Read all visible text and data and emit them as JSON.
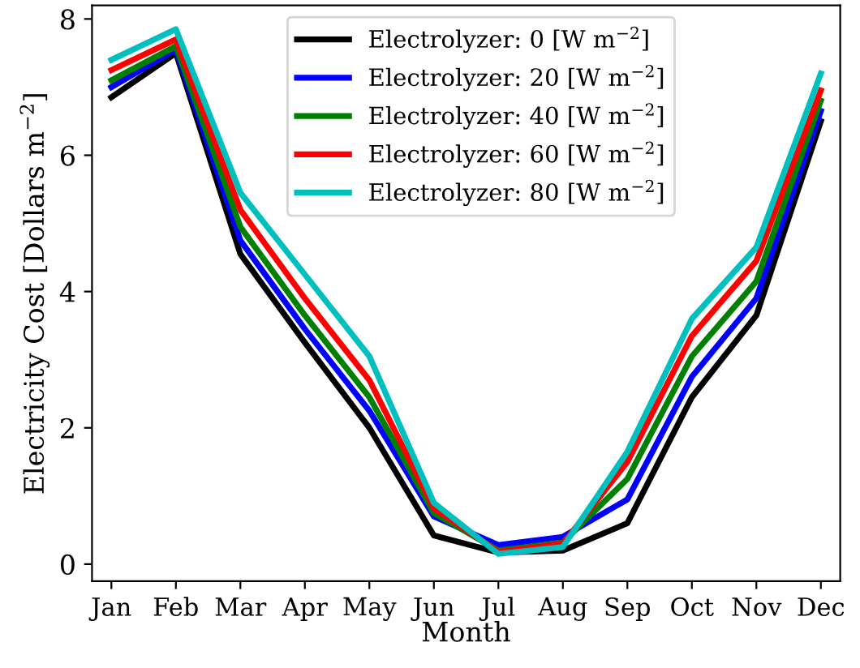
{
  "chart_data": {
    "type": "line",
    "xlabel": "Month",
    "ylabel": "Electricity Cost [Dollars m$^{−2}$]",
    "categories": [
      "Jan",
      "Feb",
      "Mar",
      "Apr",
      "May",
      "Jun",
      "Jul",
      "Aug",
      "Sep",
      "Oct",
      "Nov",
      "Dec"
    ],
    "ylim": [
      -0.25,
      8.2
    ],
    "yticks": [
      0,
      2,
      4,
      6,
      8
    ],
    "legend": "top",
    "grid": false,
    "marker": "none",
    "line_style": "solid",
    "series": [
      {
        "name": "Electrolyzer: 0 [W m$^{−2}$]",
        "color": "#000000",
        "values": [
          6.85,
          7.5,
          4.55,
          3.25,
          2.0,
          0.42,
          0.17,
          0.2,
          0.6,
          2.45,
          3.65,
          6.5
        ]
      },
      {
        "name": "Electrolyzer: 20 [W m$^{−2}$]",
        "color": "#0000ff",
        "values": [
          7.0,
          7.55,
          4.75,
          3.45,
          2.25,
          0.7,
          0.28,
          0.4,
          0.95,
          2.75,
          3.9,
          6.65
        ]
      },
      {
        "name": "Electrolyzer: 40 [W m$^{−2}$]",
        "color": "#008000",
        "values": [
          7.1,
          7.6,
          4.95,
          3.65,
          2.45,
          0.75,
          0.2,
          0.32,
          1.25,
          3.05,
          4.15,
          6.8
        ]
      },
      {
        "name": "Electrolyzer: 60 [W m$^{−2}$]",
        "color": "#ff0000",
        "values": [
          7.25,
          7.7,
          5.2,
          3.9,
          2.7,
          0.82,
          0.18,
          0.3,
          1.5,
          3.35,
          4.45,
          6.95
        ]
      },
      {
        "name": "Electrolyzer: 80 [W m$^{−2}$]",
        "color": "#00bfbf",
        "values": [
          7.4,
          7.85,
          5.45,
          4.25,
          3.05,
          0.9,
          0.15,
          0.25,
          1.65,
          3.6,
          4.65,
          7.2
        ]
      }
    ]
  }
}
